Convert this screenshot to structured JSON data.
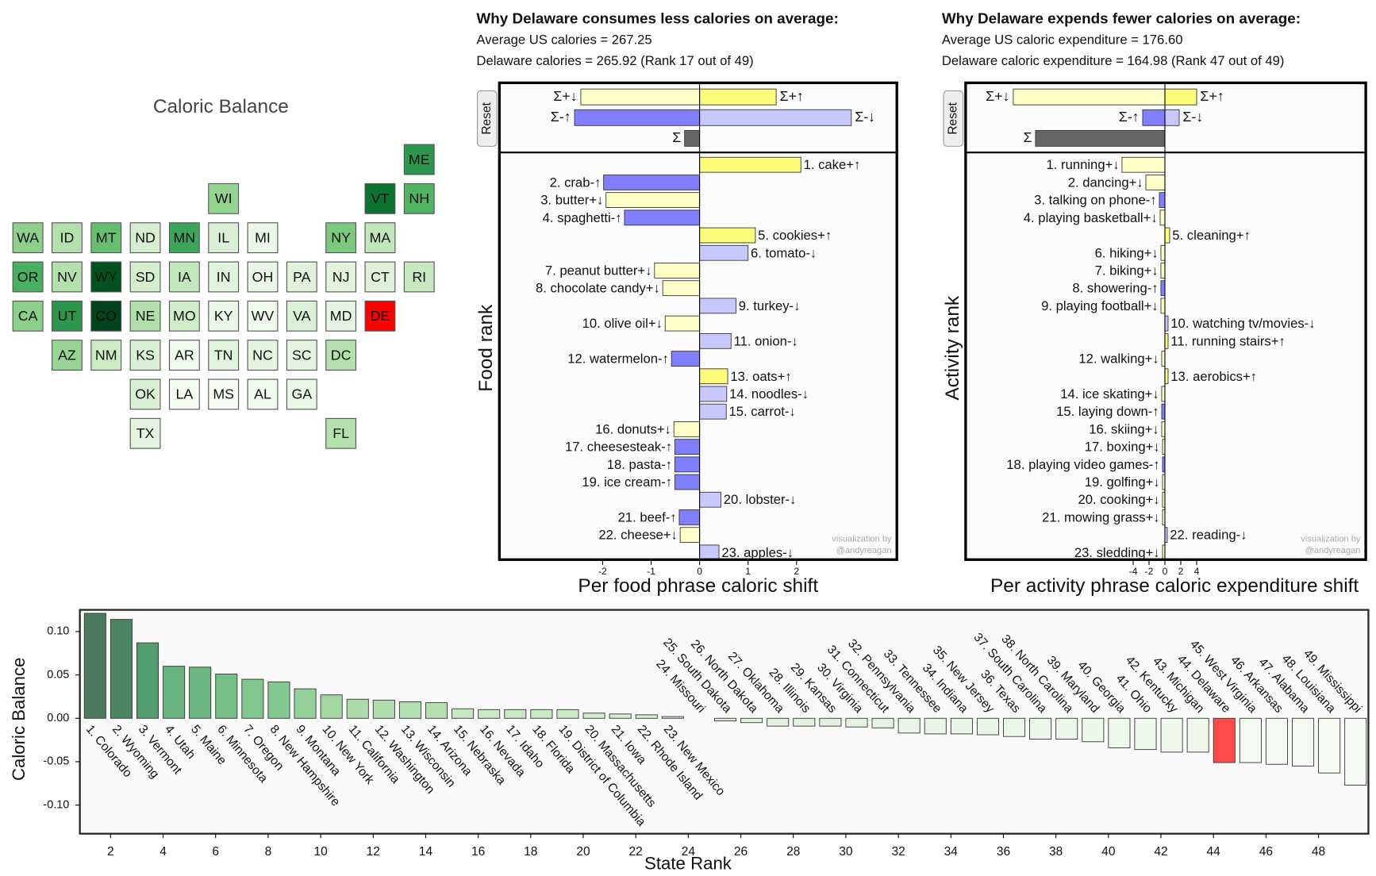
{
  "chart_data": [
    {
      "type": "tilemap",
      "title": "Caloric Balance",
      "tiles": [
        {
          "label": "ME",
          "color": "#2e974e"
        },
        {
          "label": "WI",
          "color": "#95d391"
        },
        {
          "label": "VT",
          "color": "#0c7333"
        },
        {
          "label": "NH",
          "color": "#52b365"
        },
        {
          "label": "WA",
          "color": "#8ed08b"
        },
        {
          "label": "ID",
          "color": "#b3e0ac"
        },
        {
          "label": "MT",
          "color": "#68be70"
        },
        {
          "label": "ND",
          "color": "#d7efd1"
        },
        {
          "label": "MN",
          "color": "#3ca559"
        },
        {
          "label": "IL",
          "color": "#daf0d4"
        },
        {
          "label": "MI",
          "color": "#ebf7e7"
        },
        {
          "label": "NY",
          "color": "#7cc87c"
        },
        {
          "label": "MA",
          "color": "#c0e6b9"
        },
        {
          "label": "OR",
          "color": "#4aaf61"
        },
        {
          "label": "NV",
          "color": "#b3e0ac"
        },
        {
          "label": "WY",
          "color": "#00521f"
        },
        {
          "label": "SD",
          "color": "#d4eece"
        },
        {
          "label": "IA",
          "color": "#c3e7bc"
        },
        {
          "label": "IN",
          "color": "#e0f3db"
        },
        {
          "label": "OH",
          "color": "#eaf7e6"
        },
        {
          "label": "PA",
          "color": "#dff2da"
        },
        {
          "label": "NJ",
          "color": "#e0f3db"
        },
        {
          "label": "CT",
          "color": "#dcf1d6"
        },
        {
          "label": "RI",
          "color": "#c6e8bf"
        },
        {
          "label": "CA",
          "color": "#8bcf89"
        },
        {
          "label": "UT",
          "color": "#2c964d"
        },
        {
          "label": "CO",
          "color": "#00441b"
        },
        {
          "label": "NE",
          "color": "#b0dfaa"
        },
        {
          "label": "MO",
          "color": "#d0edca"
        },
        {
          "label": "KY",
          "color": "#ebf7e7"
        },
        {
          "label": "WV",
          "color": "#eff9ec"
        },
        {
          "label": "VA",
          "color": "#dbf1d5"
        },
        {
          "label": "MD",
          "color": "#e6f5e1"
        },
        {
          "label": "DE",
          "color": "#ff0000"
        },
        {
          "label": "AZ",
          "color": "#98d493"
        },
        {
          "label": "NM",
          "color": "#cbebc4"
        },
        {
          "label": "KS",
          "color": "#daf0d4"
        },
        {
          "label": "AR",
          "color": "#f0f9ed"
        },
        {
          "label": "TN",
          "color": "#e0f3db"
        },
        {
          "label": "NC",
          "color": "#e4f5df"
        },
        {
          "label": "SC",
          "color": "#e4f5df"
        },
        {
          "label": "DC",
          "color": "#b3e0ac"
        },
        {
          "label": "OK",
          "color": "#daf0d4"
        },
        {
          "label": "LA",
          "color": "#f4fbf1"
        },
        {
          "label": "MS",
          "color": "#f7fcf5"
        },
        {
          "label": "AL",
          "color": "#f1faee"
        },
        {
          "label": "GA",
          "color": "#e9f7e5"
        },
        {
          "label": "TX",
          "color": "#e2f4dd"
        },
        {
          "label": "FL",
          "color": "#b3e0ac"
        }
      ]
    },
    {
      "type": "shift",
      "title": "Why Delaware consumes less calories on average:",
      "subtitle": [
        "Average US calories = 267.25",
        "Delaware calories = 265.92 (Rank 17 out of 49)"
      ],
      "button": "Reset",
      "summary": {
        "labels": [
          "Σ+↓",
          "Σ+↑",
          "Σ-↑",
          "Σ-↓",
          "Σ"
        ],
        "values": [
          -2.45,
          1.58,
          -2.58,
          3.13,
          -0.31
        ],
        "colors": [
          "#ffffc8",
          "#fdfb7a",
          "#8080ff",
          "#c8c8ff",
          "#666666"
        ]
      },
      "categories": [
        "1. cake+↑",
        "2. crab-↑",
        "3. butter+↓",
        "4. spaghetti-↑",
        "5. cookies+↑",
        "6. tomato-↓",
        "7. peanut butter+↓",
        "8. chocolate candy+↓",
        "9. turkey-↓",
        "10. olive oil+↓",
        "11. onion-↓",
        "12. watermelon-↑",
        "13. oats+↑",
        "14. noodles-↓",
        "15. carrot-↓",
        "16. donuts+↓",
        "17. cheesesteak-↑",
        "18. pasta-↑",
        "19. ice cream-↑",
        "20. lobster-↓",
        "21. beef-↑",
        "22. cheese+↓",
        "23. apples-↓"
      ],
      "values": [
        2.09,
        -1.98,
        -1.93,
        -1.55,
        1.15,
        1.0,
        -0.93,
        -0.76,
        0.75,
        -0.71,
        0.65,
        -0.58,
        0.58,
        0.56,
        0.55,
        -0.53,
        -0.51,
        -0.51,
        -0.51,
        0.44,
        -0.42,
        -0.4,
        0.4
      ],
      "colors": [
        "#fdfb7a",
        "#8080ff",
        "#ffffc8",
        "#8080ff",
        "#fdfb7a",
        "#c8c8ff",
        "#ffffc8",
        "#ffffc8",
        "#c8c8ff",
        "#ffffc8",
        "#c8c8ff",
        "#8080ff",
        "#fdfb7a",
        "#c8c8ff",
        "#c8c8ff",
        "#ffffc8",
        "#8080ff",
        "#8080ff",
        "#8080ff",
        "#c8c8ff",
        "#8080ff",
        "#ffffc8",
        "#c8c8ff"
      ],
      "xlim": [
        -4.13,
        4.07
      ],
      "xticks": [
        -2,
        -1,
        0,
        1,
        2
      ],
      "xlabel": "Per food phrase caloric shift",
      "ylabel": "Food rank",
      "credit": [
        "visualization by",
        "@andyreagan"
      ]
    },
    {
      "type": "shift",
      "title": "Why Delaware expends fewer calories on average:",
      "subtitle": [
        "Average US caloric expenditure = 176.60",
        "Delaware caloric expenditure = 164.98 (Rank 47 out of 49)"
      ],
      "button": "Reset",
      "summary": {
        "labels": [
          "Σ+↓",
          "Σ+↑",
          "Σ-↑",
          "Σ-↓",
          "Σ"
        ],
        "values": [
          -19.1,
          4.0,
          -2.8,
          1.8,
          -16.3
        ],
        "colors": [
          "#ffffc8",
          "#fdfb7a",
          "#8080ff",
          "#c8c8ff",
          "#666666"
        ]
      },
      "categories": [
        "1. running+↓",
        "2. dancing+↓",
        "3. talking on phone-↑",
        "4. playing basketball+↓",
        "5. cleaning+↑",
        "6. hiking+↓",
        "7. biking+↓",
        "8. showering-↑",
        "9. playing football+↓",
        "10. watching tv/movies-↓",
        "11. running stairs+↑",
        "12. walking+↓",
        "13. aerobics+↑",
        "14. ice skating+↓",
        "15. laying down-↑",
        "16. skiing+↓",
        "17. boxing+↓",
        "18. playing video games-↑",
        "19. golfing+↓",
        "20. cooking+↓",
        "21. mowing grass+↓",
        "22. reading-↓",
        "23. sledding+↓"
      ],
      "values": [
        -5.4,
        -2.4,
        -0.7,
        -0.6,
        0.6,
        -0.5,
        -0.5,
        -0.5,
        -0.5,
        0.4,
        0.4,
        -0.4,
        0.4,
        -0.4,
        -0.4,
        -0.4,
        -0.3,
        -0.3,
        -0.3,
        -0.3,
        -0.3,
        0.3,
        -0.3
      ],
      "colors": [
        "#ffffc8",
        "#ffffc8",
        "#8080ff",
        "#ffffc8",
        "#fdfb7a",
        "#ffffc8",
        "#ffffc8",
        "#8080ff",
        "#ffffc8",
        "#c8c8ff",
        "#fdfb7a",
        "#ffffc8",
        "#fdfb7a",
        "#ffffc8",
        "#8080ff",
        "#ffffc8",
        "#ffffc8",
        "#8080ff",
        "#ffffc8",
        "#ffffc8",
        "#ffffc8",
        "#c8c8ff",
        "#ffffc8"
      ],
      "xlim": [
        -25.1,
        25.3
      ],
      "xticks": [
        -4,
        -2,
        0,
        2,
        4
      ],
      "xlabel": "Per activity phrase caloric expenditure shift",
      "ylabel": "Activity rank",
      "credit": [
        "visualization by",
        "@andyreagan"
      ]
    },
    {
      "type": "bar",
      "xlabel": "State Rank",
      "ylabel": "Caloric Balance",
      "categories": [
        "1. Colorado",
        "2. Wyoming",
        "3. Vermont",
        "4. Utah",
        "5. Maine",
        "6. Minnesota",
        "7. Oregon",
        "8. New Hampshire",
        "9. Montana",
        "10. New York",
        "11. California",
        "12. Washington",
        "13. Wisconsin",
        "14. Arizona",
        "15. Nebraska",
        "16. Nevada",
        "17. Idaho",
        "18. Florida",
        "19. District of Columbia",
        "20. Massachusetts",
        "21. Iowa",
        "22. Rhode Island",
        "23. New Mexico",
        "24. Missouri",
        "25. South Dakota",
        "26. North Dakota",
        "27. Oklahoma",
        "28. Illinois",
        "29. Kansas",
        "30. Virginia",
        "31. Connecticut",
        "32. Pennsylvania",
        "33. Tennessee",
        "34. Indiana",
        "35. New Jersey",
        "36. Texas",
        "37. South Carolina",
        "38. North Carolina",
        "39. Maryland",
        "40. Georgia",
        "41. Ohio",
        "42. Kentucky",
        "43. Michigan",
        "44. Delaware",
        "45. West Virginia",
        "46. Arkansas",
        "47. Alabama",
        "48. Louisiana",
        "49. Mississippi"
      ],
      "values": [
        0.121,
        0.114,
        0.087,
        0.06,
        0.059,
        0.051,
        0.045,
        0.042,
        0.034,
        0.027,
        0.022,
        0.021,
        0.019,
        0.018,
        0.011,
        0.01,
        0.01,
        0.01,
        0.01,
        0.006,
        0.005,
        0.004,
        0.002,
        0.0,
        -0.003,
        -0.005,
        -0.009,
        -0.009,
        -0.009,
        -0.01,
        -0.011,
        -0.017,
        -0.018,
        -0.018,
        -0.019,
        -0.021,
        -0.024,
        -0.024,
        -0.027,
        -0.034,
        -0.036,
        -0.039,
        -0.039,
        -0.051,
        -0.051,
        -0.053,
        -0.055,
        -0.063,
        -0.077
      ],
      "colors": [
        "#00441b",
        "#00521f",
        "#0c7333",
        "#2c964d",
        "#2e974e",
        "#3ca559",
        "#4aaf61",
        "#52b365",
        "#68be70",
        "#7cc87c",
        "#8bcf89",
        "#8ed08b",
        "#95d391",
        "#98d493",
        "#b0dfaa",
        "#b3e0ac",
        "#b3e0ac",
        "#b3e0ac",
        "#b3e0ac",
        "#c0e6b9",
        "#c3e7bc",
        "#c6e8bf",
        "#cbebc4",
        "#d0edca",
        "#d4eece",
        "#d7efd1",
        "#daf0d4",
        "#daf0d4",
        "#daf0d4",
        "#dbf1d5",
        "#dcf1d6",
        "#dff2da",
        "#e0f3db",
        "#e0f3db",
        "#e0f3db",
        "#e2f4dd",
        "#e4f5df",
        "#e4f5df",
        "#e6f5e1",
        "#e9f7e5",
        "#eaf7e6",
        "#ebf7e7",
        "#ebf7e7",
        "#ff0000",
        "#eff9ec",
        "#f0f9ed",
        "#f1faee",
        "#f4fbf1",
        "#f7fcf5"
      ],
      "opacity": 0.7,
      "xlim": [
        0.83,
        49.9
      ],
      "xticks": [
        2,
        4,
        6,
        8,
        10,
        12,
        14,
        16,
        18,
        20,
        22,
        24,
        26,
        28,
        30,
        32,
        34,
        36,
        38,
        40,
        42,
        44,
        46,
        48
      ],
      "ylim": [
        -0.133,
        0.125
      ],
      "yticks": [
        {
          "value": -0.1,
          "label": "-0.10"
        },
        {
          "value": -0.05,
          "label": "-0.05"
        },
        {
          "value": 0,
          "label": "0.00"
        },
        {
          "value": 0.05,
          "label": "0.05"
        },
        {
          "value": 0.1,
          "label": "0.10"
        }
      ]
    }
  ]
}
